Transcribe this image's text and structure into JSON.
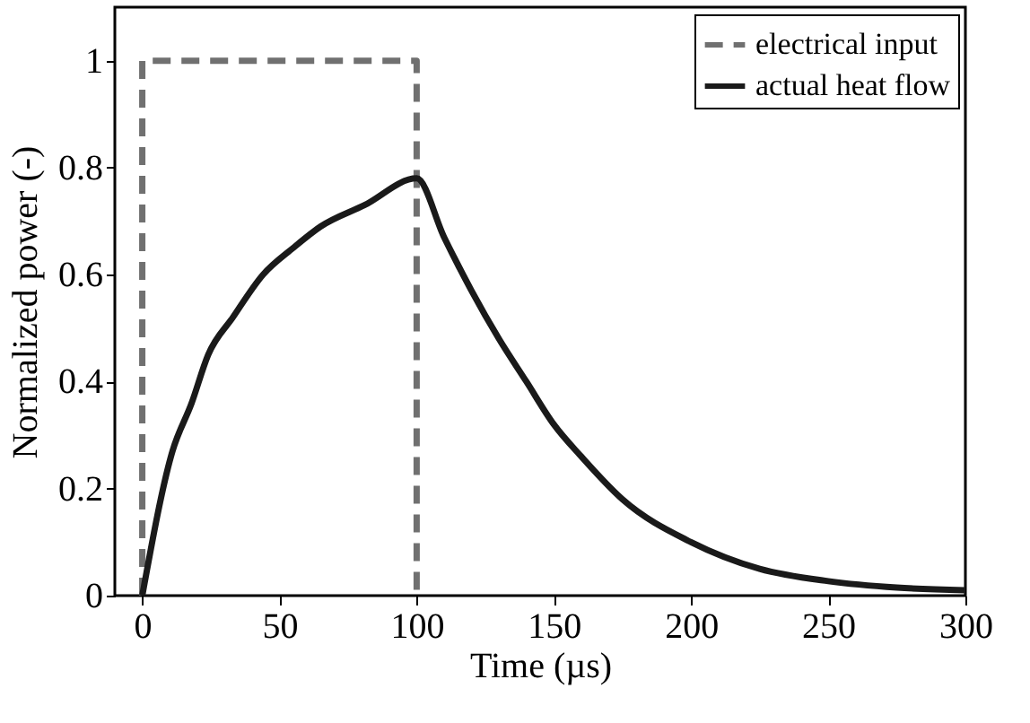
{
  "chart_data": {
    "type": "line",
    "xlabel": "Time (µs)",
    "ylabel": "Normalized power (-)",
    "xlim": [
      -10,
      300
    ],
    "xticks": [
      0,
      50,
      100,
      150,
      200,
      250,
      300
    ],
    "ylim": [
      0,
      1.1
    ],
    "yticks": [
      0,
      0.2,
      0.4,
      0.6,
      0.8,
      1
    ],
    "grid": false,
    "legend": "top right",
    "marker": "none",
    "series": [
      {
        "name": "electrical input",
        "color": "#707070",
        "line_style": "dashed",
        "x": [
          0,
          0,
          100,
          100
        ],
        "values": [
          0,
          1,
          1,
          0
        ]
      },
      {
        "name": "actual heat flow",
        "color": "#1a1a1a",
        "line_style": "solid",
        "x": [
          0,
          11,
          18,
          24,
          33,
          44,
          55,
          65,
          81,
          100,
          110,
          120,
          130,
          140,
          150,
          160,
          175,
          200,
          225,
          250,
          275,
          300
        ],
        "values": [
          0,
          0.27,
          0.36,
          0.45,
          0.52,
          0.6,
          0.65,
          0.69,
          0.73,
          0.78,
          0.67,
          0.57,
          0.48,
          0.4,
          0.32,
          0.26,
          0.18,
          0.1,
          0.05,
          0.027,
          0.015,
          0.01
        ]
      }
    ]
  }
}
